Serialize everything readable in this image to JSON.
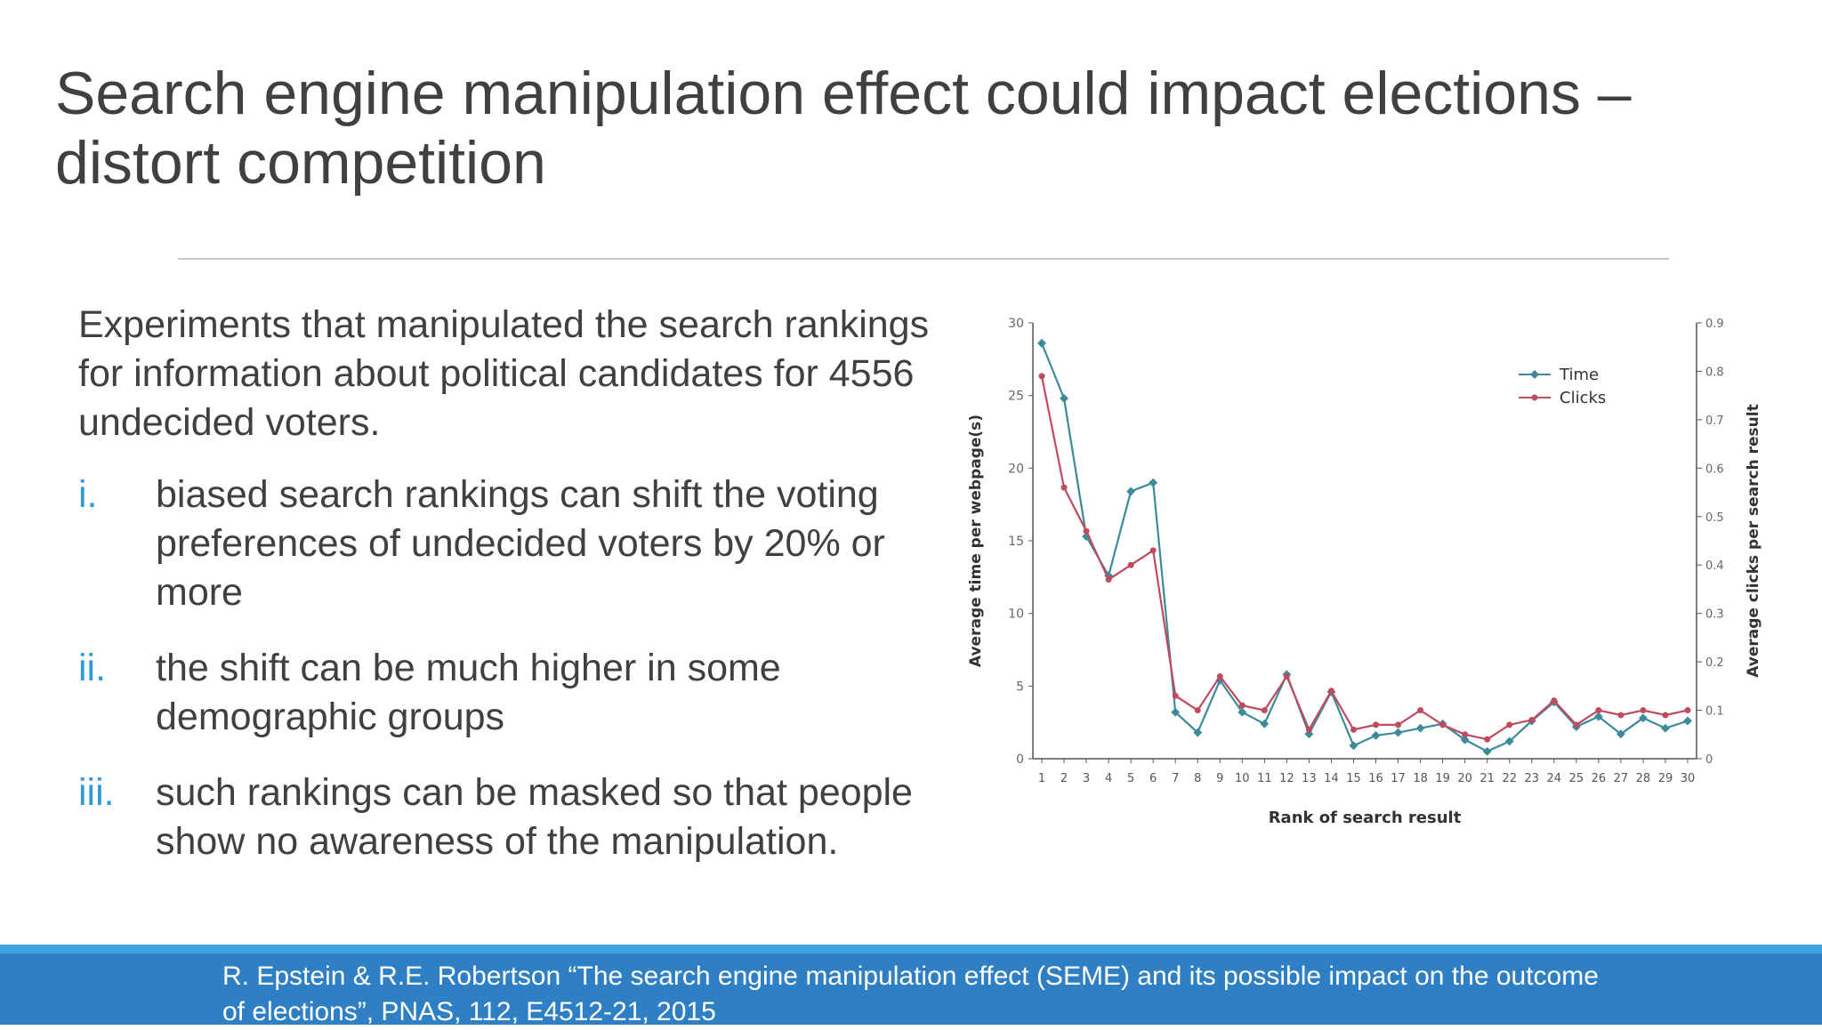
{
  "slide": {
    "title_lines": [
      "Search engine manipulation effect could impact elections –",
      "distort competition"
    ],
    "intro": "Experiments that manipulated the search rankings for information about political candidates for 4556 undecided voters.",
    "points": [
      {
        "num": "i.",
        "text": "biased search rankings can shift the voting preferences of undecided voters by 20% or more"
      },
      {
        "num": "ii.",
        "text": "the shift can be much higher in some demographic groups"
      },
      {
        "num": "iii.",
        "text": "such rankings can be masked so that people show no awareness of the manipulation."
      }
    ],
    "citation_lines": [
      "R. Epstein & R.E. Robertson “The search engine manipulation effect (SEME) and its possible impact on the outcome",
      "of elections”, PNAS, 112, E4512-21, 2015"
    ]
  },
  "colors": {
    "time": "#3c8a9a",
    "clicks": "#c04a5e",
    "accent": "#2e9bd6",
    "footer": "#2f7fc4",
    "footer_stripe": "#3ba5e0"
  },
  "chart_data": {
    "type": "line",
    "x": [
      1,
      2,
      3,
      4,
      5,
      6,
      7,
      8,
      9,
      10,
      11,
      12,
      13,
      14,
      15,
      16,
      17,
      18,
      19,
      20,
      21,
      22,
      23,
      24,
      25,
      26,
      27,
      28,
      29,
      30
    ],
    "xlabel": "Rank of search result",
    "ylabel": "Average time per webpage(s)",
    "y2label": "Average clicks per search result",
    "ylim": [
      0,
      30
    ],
    "yticks": [
      0,
      5,
      10,
      15,
      20,
      25,
      30
    ],
    "y2lim": [
      0,
      0.9
    ],
    "y2ticks": [
      0,
      0.1,
      0.2,
      0.3,
      0.4,
      0.5,
      0.6,
      0.7,
      0.8,
      0.9
    ],
    "y2ticklabels": [
      "0",
      "0.1",
      "0.2",
      "0.3",
      "0.4",
      "0.5",
      "0.6",
      "0.7",
      "0.8",
      "0.9"
    ],
    "legend_position": "top-right",
    "series": [
      {
        "name": "Time",
        "axis": "left",
        "values": [
          28.6,
          24.8,
          15.3,
          12.6,
          18.4,
          19.0,
          3.2,
          1.8,
          5.4,
          3.2,
          2.4,
          5.8,
          1.7,
          4.6,
          0.9,
          1.6,
          1.8,
          2.1,
          2.4,
          1.3,
          0.5,
          1.2,
          2.6,
          3.9,
          2.2,
          2.9,
          1.7,
          2.8,
          2.1,
          2.6
        ]
      },
      {
        "name": "Clicks",
        "axis": "right",
        "values": [
          0.79,
          0.56,
          0.47,
          0.37,
          0.4,
          0.43,
          0.13,
          0.1,
          0.17,
          0.11,
          0.1,
          0.17,
          0.06,
          0.14,
          0.06,
          0.07,
          0.07,
          0.1,
          0.07,
          0.05,
          0.04,
          0.07,
          0.08,
          0.12,
          0.07,
          0.1,
          0.09,
          0.1,
          0.09,
          0.1
        ]
      }
    ]
  }
}
